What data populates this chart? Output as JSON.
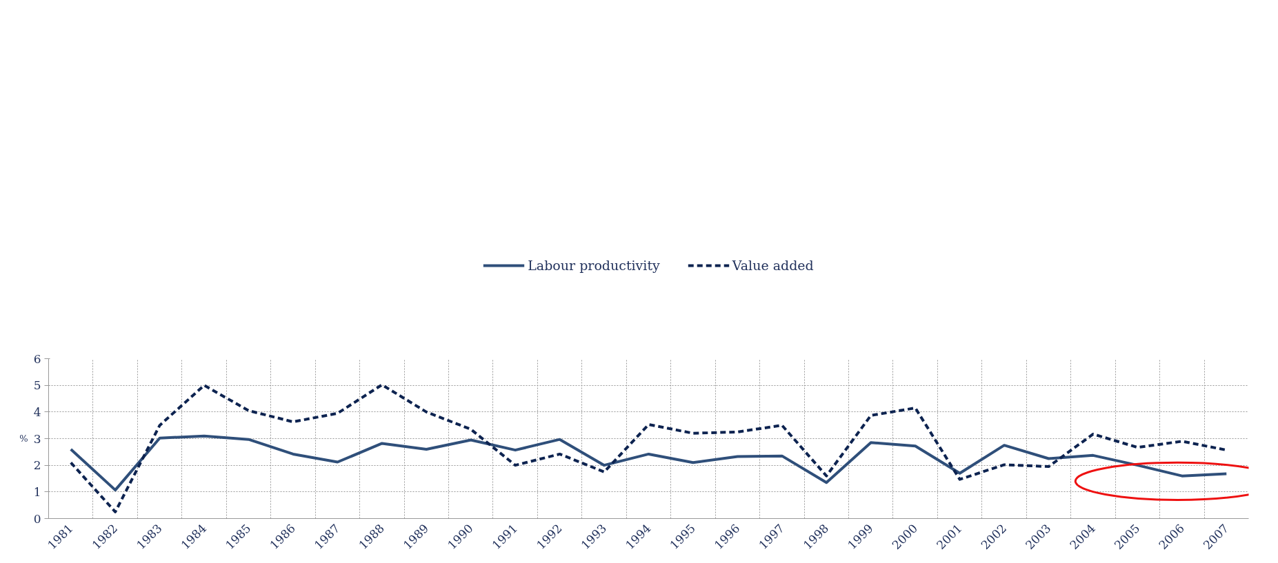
{
  "chart_data": {
    "type": "line",
    "ylabel": "%",
    "categories": [
      "1981",
      "1982",
      "1983",
      "1984",
      "1985",
      "1986",
      "1987",
      "1988",
      "1989",
      "1990",
      "1991",
      "1992",
      "1993",
      "1994",
      "1995",
      "1996",
      "1997",
      "1998",
      "1999",
      "2000",
      "2001",
      "2002",
      "2003",
      "2004",
      "2005",
      "2006",
      "2007"
    ],
    "series": [
      {
        "name": "Labour productivity",
        "color": "#2f4f7a",
        "line_style": "solid",
        "values": [
          2.6,
          1.07,
          3.02,
          3.1,
          2.97,
          2.42,
          2.12,
          2.82,
          2.6,
          2.95,
          2.57,
          2.97,
          2.0,
          2.42,
          2.1,
          2.33,
          2.35,
          1.35,
          2.85,
          2.72,
          1.7,
          2.75,
          2.25,
          2.37,
          2.0,
          1.6,
          1.68
        ]
      },
      {
        "name": "Value added",
        "color": "#0d2350",
        "line_style": "dashed",
        "values": [
          2.1,
          0.25,
          3.5,
          5.0,
          4.05,
          3.63,
          3.95,
          5.02,
          4.0,
          3.35,
          2.0,
          2.42,
          1.75,
          3.53,
          3.2,
          3.25,
          3.5,
          1.6,
          3.87,
          4.15,
          1.47,
          2.02,
          1.95,
          3.17,
          2.67,
          2.9,
          2.57
        ]
      }
    ],
    "ylim": [
      0,
      6
    ],
    "yticks": [
      0,
      1,
      2,
      3,
      4,
      5,
      6
    ],
    "grid": true,
    "legend": "top",
    "marker": "none"
  }
}
